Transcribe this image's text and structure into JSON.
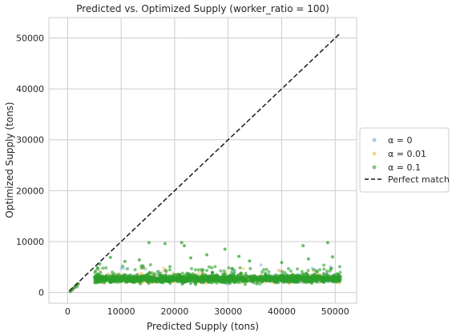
{
  "chart_data": {
    "type": "scatter",
    "title": "Predicted vs. Optimized Supply (worker_ratio = 100)",
    "xlabel": "Predicted Supply (tons)",
    "ylabel": "Optimized Supply (tons)",
    "xlim": [
      -3500,
      54000
    ],
    "ylim": [
      -2100,
      54000
    ],
    "xticks": [
      0,
      10000,
      20000,
      30000,
      40000,
      50000
    ],
    "yticks": [
      0,
      10000,
      20000,
      30000,
      40000,
      50000
    ],
    "xtick_labels": [
      "0",
      "10000",
      "20000",
      "30000",
      "40000",
      "50000"
    ],
    "ytick_labels": [
      "0",
      "10000",
      "20000",
      "30000",
      "40000",
      "50000"
    ],
    "grid": true,
    "legend_position": "outside-right",
    "series": [
      {
        "name": "α = 0",
        "color": "#6fa8dc",
        "marker": "circle",
        "band": {
          "x_range": [
            5000,
            51000
          ],
          "y_center": 2700,
          "y_spread": 900
        },
        "points": [
          [
            600,
            300
          ],
          [
            900,
            600
          ],
          [
            1200,
            900
          ],
          [
            1500,
            1200
          ],
          [
            1700,
            1500
          ],
          [
            1800,
            1100
          ]
        ]
      },
      {
        "name": "α = 0.01",
        "color": "#ffb347",
        "marker": "circle",
        "band": {
          "x_range": [
            5000,
            51000
          ],
          "y_center": 2700,
          "y_spread": 900
        },
        "points": [
          [
            700,
            400
          ],
          [
            1000,
            700
          ],
          [
            1300,
            1000
          ],
          [
            1600,
            1300
          ],
          [
            1900,
            1600
          ]
        ]
      },
      {
        "name": "α = 0.1",
        "color": "#2ca02c",
        "marker": "circle",
        "band": {
          "x_range": [
            5000,
            51000
          ],
          "y_center": 2700,
          "y_spread": 900
        },
        "points": [
          [
            500,
            200
          ],
          [
            800,
            500
          ],
          [
            1100,
            800
          ],
          [
            1400,
            1100
          ],
          [
            1700,
            1400
          ],
          [
            2000,
            1700
          ],
          [
            6000,
            5600
          ],
          [
            15200,
            9800
          ],
          [
            18200,
            9600
          ],
          [
            21300,
            9800
          ],
          [
            21800,
            9200
          ],
          [
            29400,
            8500
          ],
          [
            44000,
            9200
          ],
          [
            48600,
            9800
          ],
          [
            10700,
            6100
          ],
          [
            13400,
            6400
          ],
          [
            34000,
            6200
          ],
          [
            40000,
            5900
          ],
          [
            26000,
            7400
          ],
          [
            32000,
            7100
          ],
          [
            45000,
            6600
          ],
          [
            49500,
            7000
          ],
          [
            8000,
            6900
          ],
          [
            23000,
            6800
          ]
        ]
      },
      {
        "name": "Perfect match",
        "color": "#1a1a1a",
        "line_style": "dashed",
        "x": [
          300,
          51000
        ],
        "y": [
          300,
          51000
        ]
      }
    ]
  },
  "legend": {
    "items": [
      {
        "label": "α = 0",
        "color": "#6fa8dc"
      },
      {
        "label": "α = 0.01",
        "color": "#ffb347"
      },
      {
        "label": "α = 0.1",
        "color": "#2ca02c"
      },
      {
        "label": "Perfect match",
        "color": "#1a1a1a"
      }
    ]
  }
}
